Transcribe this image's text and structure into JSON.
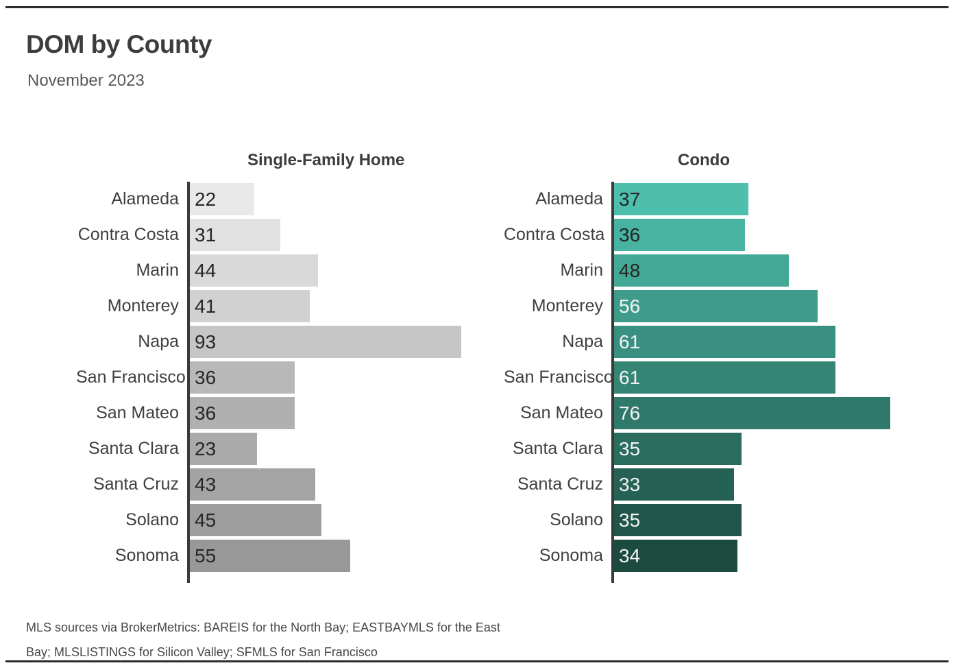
{
  "page": {
    "title": "DOM by County",
    "subtitle": "November 2023",
    "footer_line1": "MLS sources via BrokerMetrics: BAREIS for the North Bay; EASTBAYMLS for the East",
    "footer_line2": "Bay; MLSLISTINGS for Silicon Valley; SFMLS for San Francisco"
  },
  "chart_data": {
    "type": "bar",
    "orientation": "horizontal",
    "title": "DOM by County",
    "subtitle": "November 2023",
    "categories": [
      "Alameda",
      "Contra Costa",
      "Marin",
      "Monterey",
      "Napa",
      "San Francisco",
      "San Mateo",
      "Santa Clara",
      "Santa Cruz",
      "Solano",
      "Sonoma"
    ],
    "series": [
      {
        "name": "Single-Family Home",
        "values": [
          22,
          31,
          44,
          41,
          93,
          36,
          36,
          23,
          43,
          45,
          55
        ],
        "bar_colors": [
          "#E9E9E9",
          "#E1E1E1",
          "#D9D9D9",
          "#D1D1D1",
          "#C6C6C6",
          "#B8B8B8",
          "#B0B0B0",
          "#AAAAAA",
          "#A4A4A4",
          "#9E9E9E",
          "#989898"
        ],
        "value_label_colors": [
          "#272727",
          "#272727",
          "#272727",
          "#272727",
          "#272727",
          "#272727",
          "#272727",
          "#272727",
          "#272727",
          "#272727",
          "#272727"
        ]
      },
      {
        "name": "Condo",
        "values": [
          37,
          36,
          48,
          56,
          61,
          61,
          76,
          35,
          33,
          35,
          34
        ],
        "bar_colors": [
          "#4EBFAC",
          "#49B3A1",
          "#44A896",
          "#3F9C8B",
          "#3A9080",
          "#358575",
          "#2F796A",
          "#2A6D5F",
          "#256154",
          "#205649",
          "#1B4A3E"
        ],
        "value_label_colors": [
          "#242424",
          "#242424",
          "#242424",
          "#F4F4F4",
          "#F4F4F4",
          "#F4F4F4",
          "#F4F4F4",
          "#F4F4F4",
          "#F4F4F4",
          "#F4F4F4",
          "#F4F4F4"
        ]
      }
    ],
    "value_labels_inside": true,
    "axis_color": "#3a3a3a",
    "rule_color": "#2b2b2b",
    "xlabel": "",
    "ylabel": "",
    "grid": false,
    "legend_position": "none",
    "source_note": "MLS sources via BrokerMetrics: BAREIS for the North Bay; EASTBAYMLS for the East Bay; MLSLISTINGS for Silicon Valley; SFMLS for San Francisco"
  }
}
